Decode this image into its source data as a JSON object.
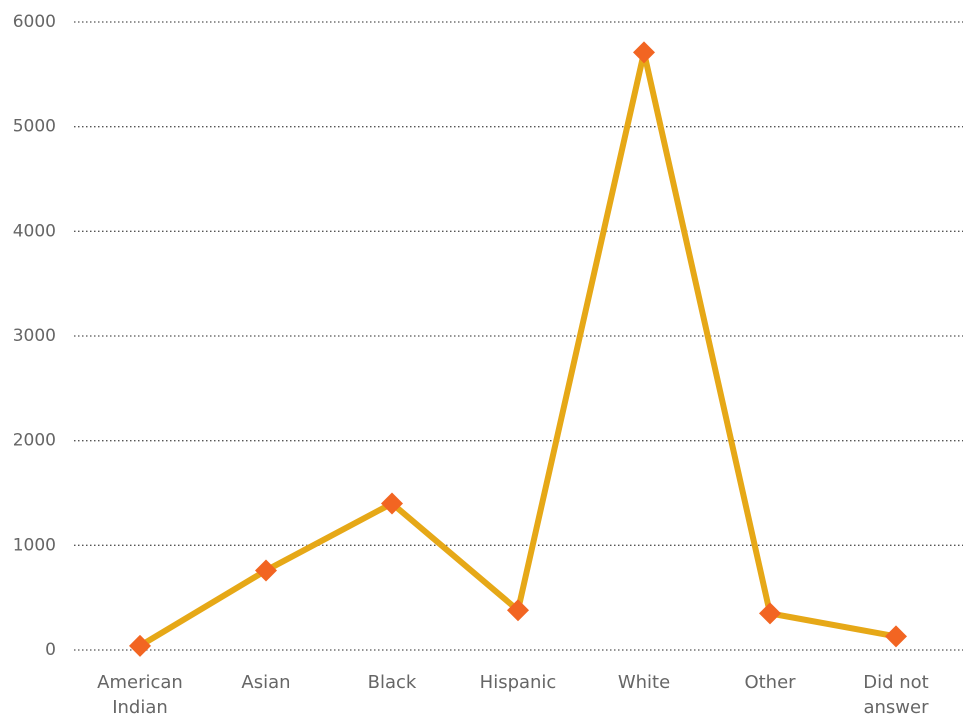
{
  "chart_data": {
    "type": "line",
    "categories": [
      "American Indian",
      "Asian",
      "Black",
      "Hispanic",
      "White",
      "Other",
      "Did not answer"
    ],
    "series": [
      {
        "values": [
          40,
          760,
          1400,
          380,
          5710,
          350,
          130
        ],
        "line_color": "#E6A817",
        "marker_color": "#F26522"
      }
    ],
    "ylim": [
      0,
      6000
    ],
    "yticks": [
      0,
      1000,
      2000,
      3000,
      4000,
      5000,
      6000
    ],
    "grid": true,
    "title": "",
    "xlabel": "",
    "ylabel": ""
  }
}
